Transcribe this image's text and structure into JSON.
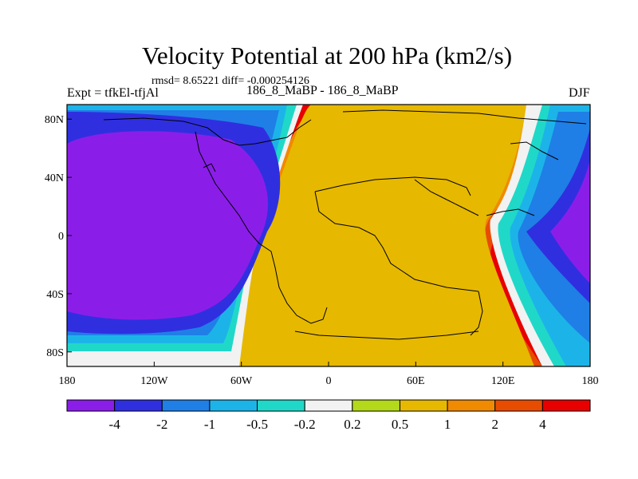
{
  "header": {
    "title": "Velocity Potential at 200 hPa (km2/s)",
    "stats": "rmsd= 8.65221 diff= -0.000254126",
    "left_label": "Expt = tfkEl-tfjAl",
    "center_label": "186_8_MaBP - 186_8_MaBP",
    "right_label": "DJF"
  },
  "chart_data": {
    "type": "heatmap",
    "title": "Velocity Potential at 200 hPa (km2/s)",
    "xlabel": "",
    "ylabel": "",
    "x_ticks": [
      "180",
      "120W",
      "60W",
      "0",
      "60E",
      "120E",
      "180"
    ],
    "y_ticks": [
      "80N",
      "40N",
      "0",
      "40S",
      "80S"
    ],
    "xlim": [
      -180,
      180
    ],
    "ylim": [
      -90,
      90
    ],
    "colorbar": {
      "labels": [
        "-4",
        "-2",
        "-1",
        "-0.5",
        "-0.2",
        "0.2",
        "0.5",
        "1",
        "2",
        "4"
      ],
      "colors": [
        "#8a1ee8",
        "#2f2fe0",
        "#1f7fe6",
        "#1cb4e8",
        "#20d8c8",
        "#f2f2f2",
        "#b4d81a",
        "#e6b800",
        "#f08a00",
        "#e84c00",
        "#e80000"
      ]
    }
  }
}
